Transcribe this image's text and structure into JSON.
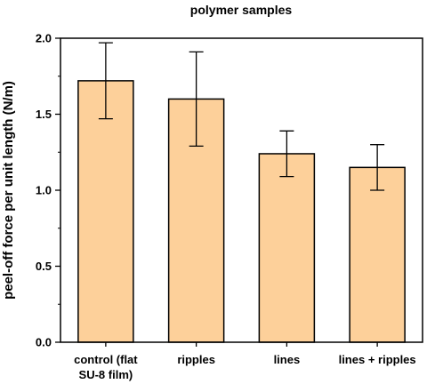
{
  "chart_data": {
    "type": "bar",
    "title": "polymer samples",
    "xlabel": "",
    "ylabel": "peel-off force per unit length (N/m)",
    "categories": [
      [
        "control (flat",
        "SU-8 film)"
      ],
      [
        "ripples"
      ],
      [
        "lines"
      ],
      [
        "lines + ripples"
      ]
    ],
    "values": [
      1.72,
      1.6,
      1.24,
      1.15
    ],
    "error_low": [
      1.47,
      1.29,
      1.09,
      1.0
    ],
    "error_high": [
      1.97,
      1.91,
      1.39,
      1.3
    ],
    "ylim": [
      0.0,
      2.0
    ],
    "yticks": [
      "0.0",
      "0.5",
      "1.0",
      "1.5",
      "2.0"
    ],
    "bar_color": "#fdd09a",
    "grid": false
  }
}
